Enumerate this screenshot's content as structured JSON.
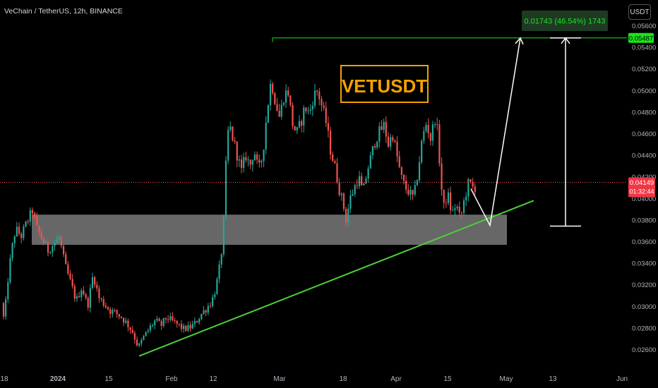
{
  "header": {
    "title": "VeChain / TetherUS, 12h, BINANCE",
    "currency": "USDT"
  },
  "colors": {
    "background": "#000000",
    "up": "#26a69a",
    "down": "#ef5350",
    "trendline": "#4cd137",
    "zone": "#8a8a8a",
    "label_box": "#f4a100",
    "measure_green": "#19e619",
    "price_badge": "#f23645"
  },
  "annotations": {
    "symbol_label": "VETUSDT",
    "measure_label": "0.01743 (46.54%) 1743"
  },
  "price_badges": {
    "target": "0.05487",
    "last_price": "0.04149",
    "countdown": "01:32:44"
  },
  "chart_data": {
    "type": "candlestick",
    "title": "VeChain / TetherUS, 12h, BINANCE",
    "y_axis": {
      "ticks": [
        "0.05600",
        "0.05400",
        "0.05200",
        "0.05000",
        "0.04800",
        "0.04600",
        "0.04400",
        "0.04200",
        "0.04000",
        "0.03800",
        "0.03600",
        "0.03400",
        "0.03200",
        "0.03000",
        "0.02800",
        "0.02600"
      ],
      "range": [
        0.025,
        0.0572
      ]
    },
    "x_axis": {
      "ticks": [
        "18",
        "2024",
        "15",
        "Feb",
        "12",
        "Mar",
        "18",
        "Apr",
        "15",
        "May",
        "13",
        "Jun"
      ]
    },
    "close_path": [
      [
        0,
        0.0312
      ],
      [
        6,
        0.0285
      ],
      [
        10,
        0.0318
      ],
      [
        16,
        0.035
      ],
      [
        22,
        0.0372
      ],
      [
        30,
        0.0365
      ],
      [
        38,
        0.0378
      ],
      [
        46,
        0.0389
      ],
      [
        52,
        0.0372
      ],
      [
        60,
        0.0362
      ],
      [
        68,
        0.0352
      ],
      [
        76,
        0.0358
      ],
      [
        84,
        0.0364
      ],
      [
        92,
        0.0338
      ],
      [
        100,
        0.0322
      ],
      [
        108,
        0.0305
      ],
      [
        116,
        0.0318
      ],
      [
        124,
        0.03
      ],
      [
        132,
        0.033
      ],
      [
        140,
        0.0308
      ],
      [
        148,
        0.0302
      ],
      [
        156,
        0.0296
      ],
      [
        164,
        0.0294
      ],
      [
        172,
        0.029
      ],
      [
        180,
        0.0284
      ],
      [
        188,
        0.0276
      ],
      [
        196,
        0.0262
      ],
      [
        204,
        0.0272
      ],
      [
        212,
        0.028
      ],
      [
        220,
        0.0287
      ],
      [
        228,
        0.0282
      ],
      [
        236,
        0.029
      ],
      [
        244,
        0.0286
      ],
      [
        252,
        0.0283
      ],
      [
        260,
        0.0279
      ],
      [
        268,
        0.028
      ],
      [
        276,
        0.0284
      ],
      [
        284,
        0.0292
      ],
      [
        292,
        0.0298
      ],
      [
        300,
        0.0305
      ],
      [
        306,
        0.0318
      ],
      [
        312,
        0.034
      ],
      [
        316,
        0.0365
      ],
      [
        320,
        0.043
      ],
      [
        324,
        0.047
      ],
      [
        330,
        0.0455
      ],
      [
        336,
        0.044
      ],
      [
        342,
        0.0425
      ],
      [
        348,
        0.044
      ],
      [
        354,
        0.043
      ],
      [
        360,
        0.0445
      ],
      [
        366,
        0.0425
      ],
      [
        372,
        0.044
      ],
      [
        378,
        0.048
      ],
      [
        384,
        0.051
      ],
      [
        390,
        0.049
      ],
      [
        396,
        0.0475
      ],
      [
        402,
        0.0495
      ],
      [
        408,
        0.05
      ],
      [
        414,
        0.047
      ],
      [
        420,
        0.046
      ],
      [
        426,
        0.047
      ],
      [
        432,
        0.0485
      ],
      [
        438,
        0.0478
      ],
      [
        444,
        0.0495
      ],
      [
        450,
        0.05
      ],
      [
        456,
        0.0485
      ],
      [
        462,
        0.047
      ],
      [
        468,
        0.0445
      ],
      [
        474,
        0.043
      ],
      [
        480,
        0.041
      ],
      [
        486,
        0.0395
      ],
      [
        490,
        0.038
      ],
      [
        496,
        0.04
      ],
      [
        502,
        0.041
      ],
      [
        508,
        0.042
      ],
      [
        514,
        0.0405
      ],
      [
        520,
        0.0425
      ],
      [
        526,
        0.044
      ],
      [
        532,
        0.0455
      ],
      [
        538,
        0.0462
      ],
      [
        544,
        0.0468
      ],
      [
        550,
        0.045
      ],
      [
        556,
        0.046
      ],
      [
        562,
        0.044
      ],
      [
        568,
        0.042
      ],
      [
        574,
        0.041
      ],
      [
        580,
        0.0405
      ],
      [
        586,
        0.04
      ],
      [
        592,
        0.0425
      ],
      [
        598,
        0.0455
      ],
      [
        604,
        0.047
      ],
      [
        610,
        0.0455
      ],
      [
        616,
        0.0475
      ],
      [
        620,
        0.046
      ],
      [
        624,
        0.042
      ],
      [
        628,
        0.039
      ],
      [
        634,
        0.0405
      ],
      [
        640,
        0.0385
      ],
      [
        646,
        0.0395
      ],
      [
        652,
        0.038
      ],
      [
        658,
        0.04
      ],
      [
        664,
        0.0415
      ],
      [
        670,
        0.041
      ]
    ],
    "markers": [
      {
        "label": "last price",
        "value": 0.04149
      },
      {
        "label": "target",
        "value": 0.05487
      }
    ],
    "support_zone": {
      "top": 0.0385,
      "bottom": 0.0357
    },
    "trendline": {
      "from": [
        0.0254
      ],
      "to": [
        0.039
      ]
    },
    "measure": {
      "from": 0.03744,
      "to": 0.05487,
      "change": 0.01743,
      "percent": 46.54
    }
  }
}
